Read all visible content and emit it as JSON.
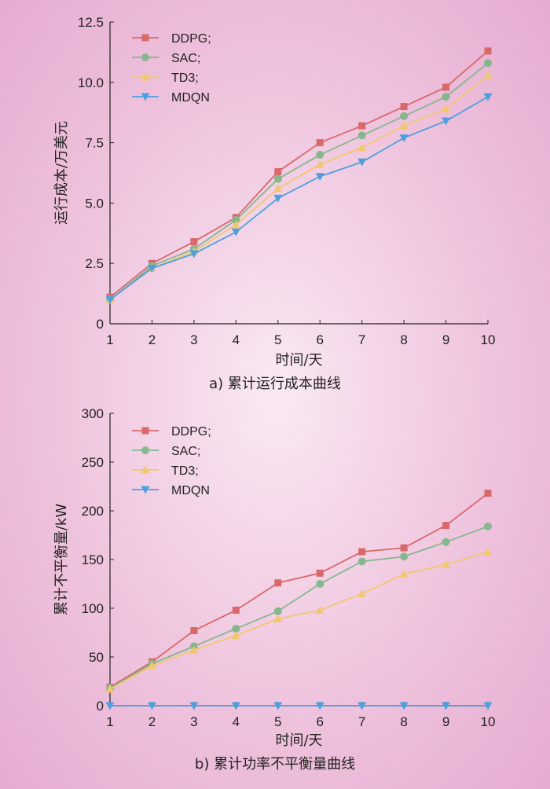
{
  "chart_data": [
    {
      "type": "line",
      "caption": "a) 累计运行成本曲线",
      "xlabel": "时间/天",
      "ylabel": "运行成本/万美元",
      "x": [
        1,
        2,
        3,
        4,
        5,
        6,
        7,
        8,
        9,
        10
      ],
      "xlim": [
        1,
        10
      ],
      "ylim": [
        0,
        12.5
      ],
      "yticks": [
        "0",
        "2.5",
        "5.0",
        "7.5",
        "10.0",
        "12.5"
      ],
      "ytick_values": [
        0,
        2.5,
        5.0,
        7.5,
        10.0,
        12.5
      ],
      "grid": false,
      "legend": "top-left",
      "series": [
        {
          "name": "DDPG;",
          "marker": "square",
          "color": "#d9686a",
          "values": [
            1.1,
            2.5,
            3.4,
            4.4,
            6.3,
            7.5,
            8.2,
            9.0,
            9.8,
            11.3
          ]
        },
        {
          "name": "SAC;",
          "marker": "circle",
          "color": "#86b68e",
          "values": [
            1.0,
            2.4,
            3.1,
            4.3,
            6.0,
            7.0,
            7.8,
            8.6,
            9.4,
            10.8
          ]
        },
        {
          "name": "TD3;",
          "marker": "triangle-up",
          "color": "#f1c771",
          "values": [
            1.0,
            2.3,
            3.0,
            4.1,
            5.6,
            6.6,
            7.3,
            8.2,
            8.9,
            10.3
          ]
        },
        {
          "name": "MDQN",
          "marker": "triangle-down",
          "color": "#4ea0dc",
          "values": [
            1.0,
            2.3,
            2.9,
            3.8,
            5.2,
            6.1,
            6.7,
            7.7,
            8.4,
            9.4
          ]
        }
      ]
    },
    {
      "type": "line",
      "caption": "b) 累计功率不平衡量曲线",
      "xlabel": "时间/天",
      "ylabel": "累计不平衡量/kW",
      "x": [
        1,
        2,
        3,
        4,
        5,
        6,
        7,
        8,
        9,
        10
      ],
      "xlim": [
        1,
        10
      ],
      "ylim": [
        0,
        300
      ],
      "yticks": [
        "0",
        "50",
        "100",
        "150",
        "200",
        "250",
        "300"
      ],
      "ytick_values": [
        0,
        50,
        100,
        150,
        200,
        250,
        300
      ],
      "grid": false,
      "legend": "top-left",
      "series": [
        {
          "name": "DDPG;",
          "marker": "square",
          "color": "#d9686a",
          "values": [
            19,
            45,
            77,
            98,
            126,
            136,
            158,
            162,
            185,
            218
          ]
        },
        {
          "name": "SAC;",
          "marker": "circle",
          "color": "#86b68e",
          "values": [
            18,
            43,
            61,
            79,
            97,
            125,
            148,
            153,
            168,
            184
          ]
        },
        {
          "name": "TD3;",
          "marker": "triangle-up",
          "color": "#f1c771",
          "values": [
            17,
            41,
            57,
            72,
            89,
            98,
            115,
            135,
            145,
            158
          ]
        },
        {
          "name": "MDQN",
          "marker": "triangle-down",
          "color": "#4ea0dc",
          "values": [
            0,
            0,
            0,
            0,
            0,
            0,
            0,
            0,
            0,
            0
          ]
        }
      ]
    }
  ]
}
